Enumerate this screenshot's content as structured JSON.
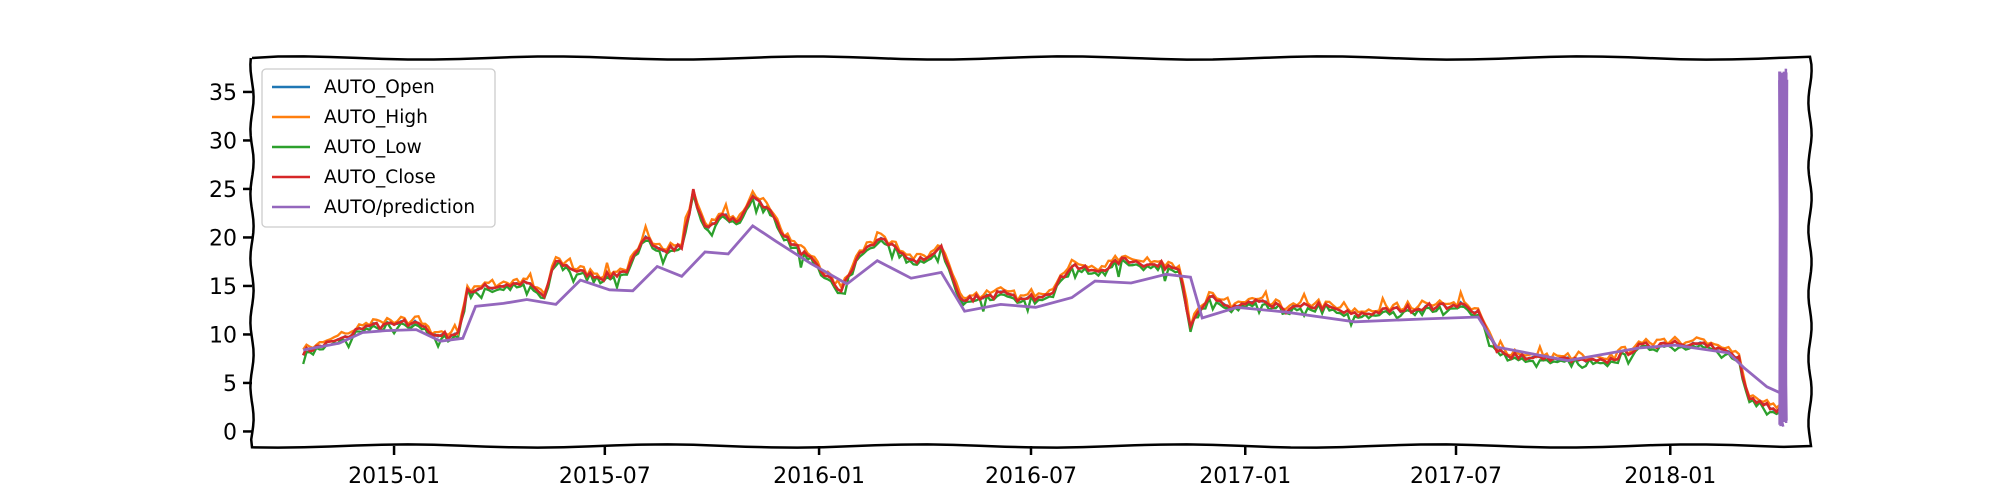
{
  "chart_data": {
    "type": "line",
    "title": "",
    "xlabel": "",
    "ylabel": "",
    "x_range": [
      "2014-09-01",
      "2018-05-01"
    ],
    "ylim": [
      -1.5,
      38.5
    ],
    "yticks": [
      0,
      5,
      10,
      15,
      20,
      25,
      30,
      35
    ],
    "xticks": [
      "2015-01",
      "2015-07",
      "2016-01",
      "2016-07",
      "2017-01",
      "2017-07",
      "2018-01"
    ],
    "grid": false,
    "legend_position": "top-left",
    "style": "xkcd-like wobbly frame",
    "series": [
      {
        "name": "AUTO_Open",
        "color": "#1f77b4"
      },
      {
        "name": "AUTO_High",
        "color": "#ff7f0e"
      },
      {
        "name": "AUTO_Low",
        "color": "#2ca02c"
      },
      {
        "name": "AUTO_Close",
        "color": "#d62728"
      },
      {
        "name": "AUTO/prediction",
        "color": "#9467bd"
      }
    ],
    "close_points": [
      [
        "2014-10-15",
        8.2
      ],
      [
        "2014-11-01",
        8.9
      ],
      [
        "2014-11-20",
        9.6
      ],
      [
        "2014-12-05",
        10.8
      ],
      [
        "2014-12-20",
        10.9
      ],
      [
        "2015-01-10",
        11.1
      ],
      [
        "2015-01-25",
        11.2
      ],
      [
        "2015-02-05",
        9.7
      ],
      [
        "2015-02-25",
        10.1
      ],
      [
        "2015-03-05",
        14.5
      ],
      [
        "2015-03-20",
        14.8
      ],
      [
        "2015-04-05",
        15.1
      ],
      [
        "2015-04-25",
        15.3
      ],
      [
        "2015-05-10",
        13.9
      ],
      [
        "2015-05-20",
        17.6
      ],
      [
        "2015-06-10",
        16.4
      ],
      [
        "2015-06-30",
        15.9
      ],
      [
        "2015-07-20",
        16.6
      ],
      [
        "2015-08-05",
        19.8
      ],
      [
        "2015-08-20",
        18.9
      ],
      [
        "2015-09-05",
        19.0
      ],
      [
        "2015-09-15",
        24.6
      ],
      [
        "2015-09-25",
        21.0
      ],
      [
        "2015-10-10",
        22.2
      ],
      [
        "2015-10-25",
        21.6
      ],
      [
        "2015-11-05",
        24.5
      ],
      [
        "2015-11-20",
        22.6
      ],
      [
        "2015-12-05",
        19.8
      ],
      [
        "2015-12-25",
        17.6
      ],
      [
        "2016-01-20",
        14.5
      ],
      [
        "2016-02-05",
        18.3
      ],
      [
        "2016-02-20",
        19.8
      ],
      [
        "2016-03-10",
        18.6
      ],
      [
        "2016-03-25",
        17.3
      ],
      [
        "2016-04-15",
        19.0
      ],
      [
        "2016-05-01",
        13.7
      ],
      [
        "2016-05-15",
        13.8
      ],
      [
        "2016-06-05",
        14.2
      ],
      [
        "2016-06-25",
        13.5
      ],
      [
        "2016-07-20",
        14.6
      ],
      [
        "2016-08-05",
        17.2
      ],
      [
        "2016-08-25",
        16.4
      ],
      [
        "2016-09-20",
        17.8
      ],
      [
        "2016-10-15",
        17.1
      ],
      [
        "2016-11-05",
        17.1
      ],
      [
        "2016-11-15",
        10.9
      ],
      [
        "2016-12-01",
        13.7
      ],
      [
        "2016-12-20",
        12.8
      ],
      [
        "2017-01-10",
        13.3
      ],
      [
        "2017-02-05",
        12.6
      ],
      [
        "2017-03-05",
        13.0
      ],
      [
        "2017-04-05",
        12.0
      ],
      [
        "2017-05-05",
        12.5
      ],
      [
        "2017-06-05",
        12.8
      ],
      [
        "2017-07-05",
        13.1
      ],
      [
        "2017-07-20",
        12.2
      ],
      [
        "2017-08-05",
        8.2
      ],
      [
        "2017-09-05",
        7.6
      ],
      [
        "2017-10-05",
        7.4
      ],
      [
        "2017-11-05",
        7.1
      ],
      [
        "2017-12-05",
        8.7
      ],
      [
        "2018-01-05",
        9.3
      ],
      [
        "2018-02-05",
        8.8
      ],
      [
        "2018-03-01",
        7.4
      ],
      [
        "2018-03-10",
        3.3
      ],
      [
        "2018-03-25",
        2.8
      ],
      [
        "2018-04-05",
        2.3
      ]
    ],
    "prediction_points": [
      [
        "2014-10-15",
        8.4
      ],
      [
        "2014-11-15",
        9.1
      ],
      [
        "2014-12-05",
        10.2
      ],
      [
        "2014-12-25",
        10.4
      ],
      [
        "2015-01-20",
        10.5
      ],
      [
        "2015-02-10",
        9.3
      ],
      [
        "2015-03-01",
        9.6
      ],
      [
        "2015-03-12",
        12.9
      ],
      [
        "2015-04-05",
        13.2
      ],
      [
        "2015-04-25",
        13.6
      ],
      [
        "2015-05-20",
        13.1
      ],
      [
        "2015-06-10",
        15.6
      ],
      [
        "2015-07-05",
        14.6
      ],
      [
        "2015-07-25",
        14.5
      ],
      [
        "2015-08-15",
        17.0
      ],
      [
        "2015-09-05",
        16.0
      ],
      [
        "2015-09-25",
        18.5
      ],
      [
        "2015-10-15",
        18.3
      ],
      [
        "2015-11-05",
        21.2
      ],
      [
        "2015-11-25",
        19.6
      ],
      [
        "2015-12-25",
        17.3
      ],
      [
        "2016-01-25",
        15.2
      ],
      [
        "2016-02-20",
        17.6
      ],
      [
        "2016-03-20",
        15.8
      ],
      [
        "2016-04-15",
        16.4
      ],
      [
        "2016-05-05",
        12.4
      ],
      [
        "2016-06-05",
        13.1
      ],
      [
        "2016-07-05",
        12.8
      ],
      [
        "2016-08-05",
        13.8
      ],
      [
        "2016-08-25",
        15.5
      ],
      [
        "2016-09-25",
        15.3
      ],
      [
        "2016-10-25",
        16.2
      ],
      [
        "2016-11-15",
        15.9
      ],
      [
        "2016-11-25",
        11.7
      ],
      [
        "2016-12-25",
        12.8
      ],
      [
        "2017-02-05",
        12.3
      ],
      [
        "2017-04-05",
        11.3
      ],
      [
        "2017-06-05",
        11.6
      ],
      [
        "2017-07-20",
        11.8
      ],
      [
        "2017-08-05",
        8.7
      ],
      [
        "2017-10-05",
        7.3
      ],
      [
        "2017-12-05",
        8.6
      ],
      [
        "2018-01-05",
        8.9
      ],
      [
        "2018-02-20",
        8.1
      ],
      [
        "2018-03-05",
        6.6
      ],
      [
        "2018-03-25",
        4.6
      ],
      [
        "2018-04-05",
        4.0
      ]
    ],
    "prediction_spike": {
      "x": "2018-04-08",
      "ymin": 0.5,
      "ymax": 37.4
    }
  }
}
